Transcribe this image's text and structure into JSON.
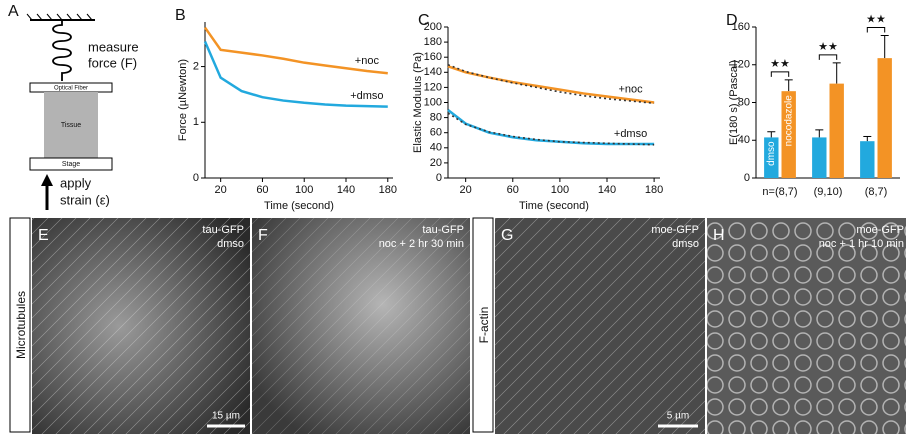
{
  "diagram": {
    "label": "A",
    "measure": "measure",
    "force": "force (F)",
    "fiber": "Optical Fiber",
    "tissue": "Tissue",
    "stage": "Stage",
    "apply": "apply",
    "strain": "strain (ε)"
  },
  "chart_data": [
    {
      "type": "line",
      "label": "B",
      "xlabel": "Time (second)",
      "ylabel": "Force (µNewton)",
      "x": [
        5,
        20,
        40,
        60,
        80,
        100,
        120,
        140,
        160,
        180
      ],
      "xlim": [
        5,
        185
      ],
      "xticks": [
        20,
        60,
        100,
        140,
        180
      ],
      "ylim": [
        0,
        2.8
      ],
      "yticks": [
        0,
        1,
        2
      ],
      "series": [
        {
          "name": "+noc",
          "color": "#f39325",
          "values": [
            2.7,
            2.3,
            2.25,
            2.2,
            2.14,
            2.07,
            2.02,
            1.97,
            1.92,
            1.88
          ]
        },
        {
          "name": "+dmso",
          "color": "#22a9de",
          "values": [
            2.45,
            1.8,
            1.56,
            1.45,
            1.39,
            1.35,
            1.32,
            1.3,
            1.29,
            1.28
          ]
        }
      ]
    },
    {
      "type": "line",
      "label": "C",
      "xlabel": "Time (second)",
      "ylabel": "Elastic Modulus (Pa)",
      "x": [
        5,
        20,
        40,
        60,
        80,
        100,
        120,
        140,
        160,
        180
      ],
      "xlim": [
        5,
        185
      ],
      "xticks": [
        20,
        60,
        100,
        140,
        180
      ],
      "ylim": [
        0,
        200
      ],
      "yticks": [
        0,
        20,
        40,
        60,
        80,
        100,
        120,
        140,
        160,
        180,
        200
      ],
      "series": [
        {
          "name": "+noc",
          "color": "#f39325",
          "values": [
            148,
            140,
            133,
            127,
            122,
            117,
            112,
            108,
            104,
            100
          ]
        },
        {
          "color": "#333333",
          "dashed": true,
          "values": [
            150,
            141,
            133,
            126,
            120,
            114,
            109,
            105,
            102,
            99
          ]
        },
        {
          "name": "+dmso",
          "color": "#22a9de",
          "values": [
            90,
            72,
            60,
            54,
            50,
            48,
            46,
            45,
            45,
            45
          ]
        },
        {
          "color": "#333333",
          "dashed": true,
          "values": [
            86,
            71,
            61,
            55,
            51,
            48,
            47,
            46,
            45,
            44
          ]
        }
      ]
    },
    {
      "type": "bar",
      "label": "D",
      "ylabel": "E(180 s) (Pascal)",
      "categories": [
        "n=(8,7)",
        "(9,10)",
        "(8,7)"
      ],
      "ylim": [
        0,
        160
      ],
      "yticks": [
        0,
        40,
        80,
        120,
        160
      ],
      "annotations": [
        "★★",
        "★★",
        "★★"
      ],
      "series": [
        {
          "name": "dmso",
          "color": "#22a9de",
          "values": [
            43,
            43,
            39
          ],
          "errors": [
            6,
            8,
            5
          ]
        },
        {
          "name": "nocodazole",
          "color": "#f39325",
          "values": [
            92,
            100,
            127
          ],
          "errors": [
            12,
            22,
            24
          ]
        }
      ]
    }
  ],
  "images": [
    {
      "label": "E",
      "marker": "tau-GFP",
      "condition": "dmso",
      "scale": "15 µm"
    },
    {
      "label": "F",
      "marker": "tau-GFP",
      "condition": "noc + 2 hr 30 min"
    },
    {
      "label": "G",
      "marker": "moe-GFP",
      "condition": "dmso",
      "scale": "5 µm"
    },
    {
      "label": "H",
      "marker": "moe-GFP",
      "condition": "noc + 1 hr 10 min"
    }
  ],
  "rows": [
    "Microtubules",
    "F-actin"
  ]
}
